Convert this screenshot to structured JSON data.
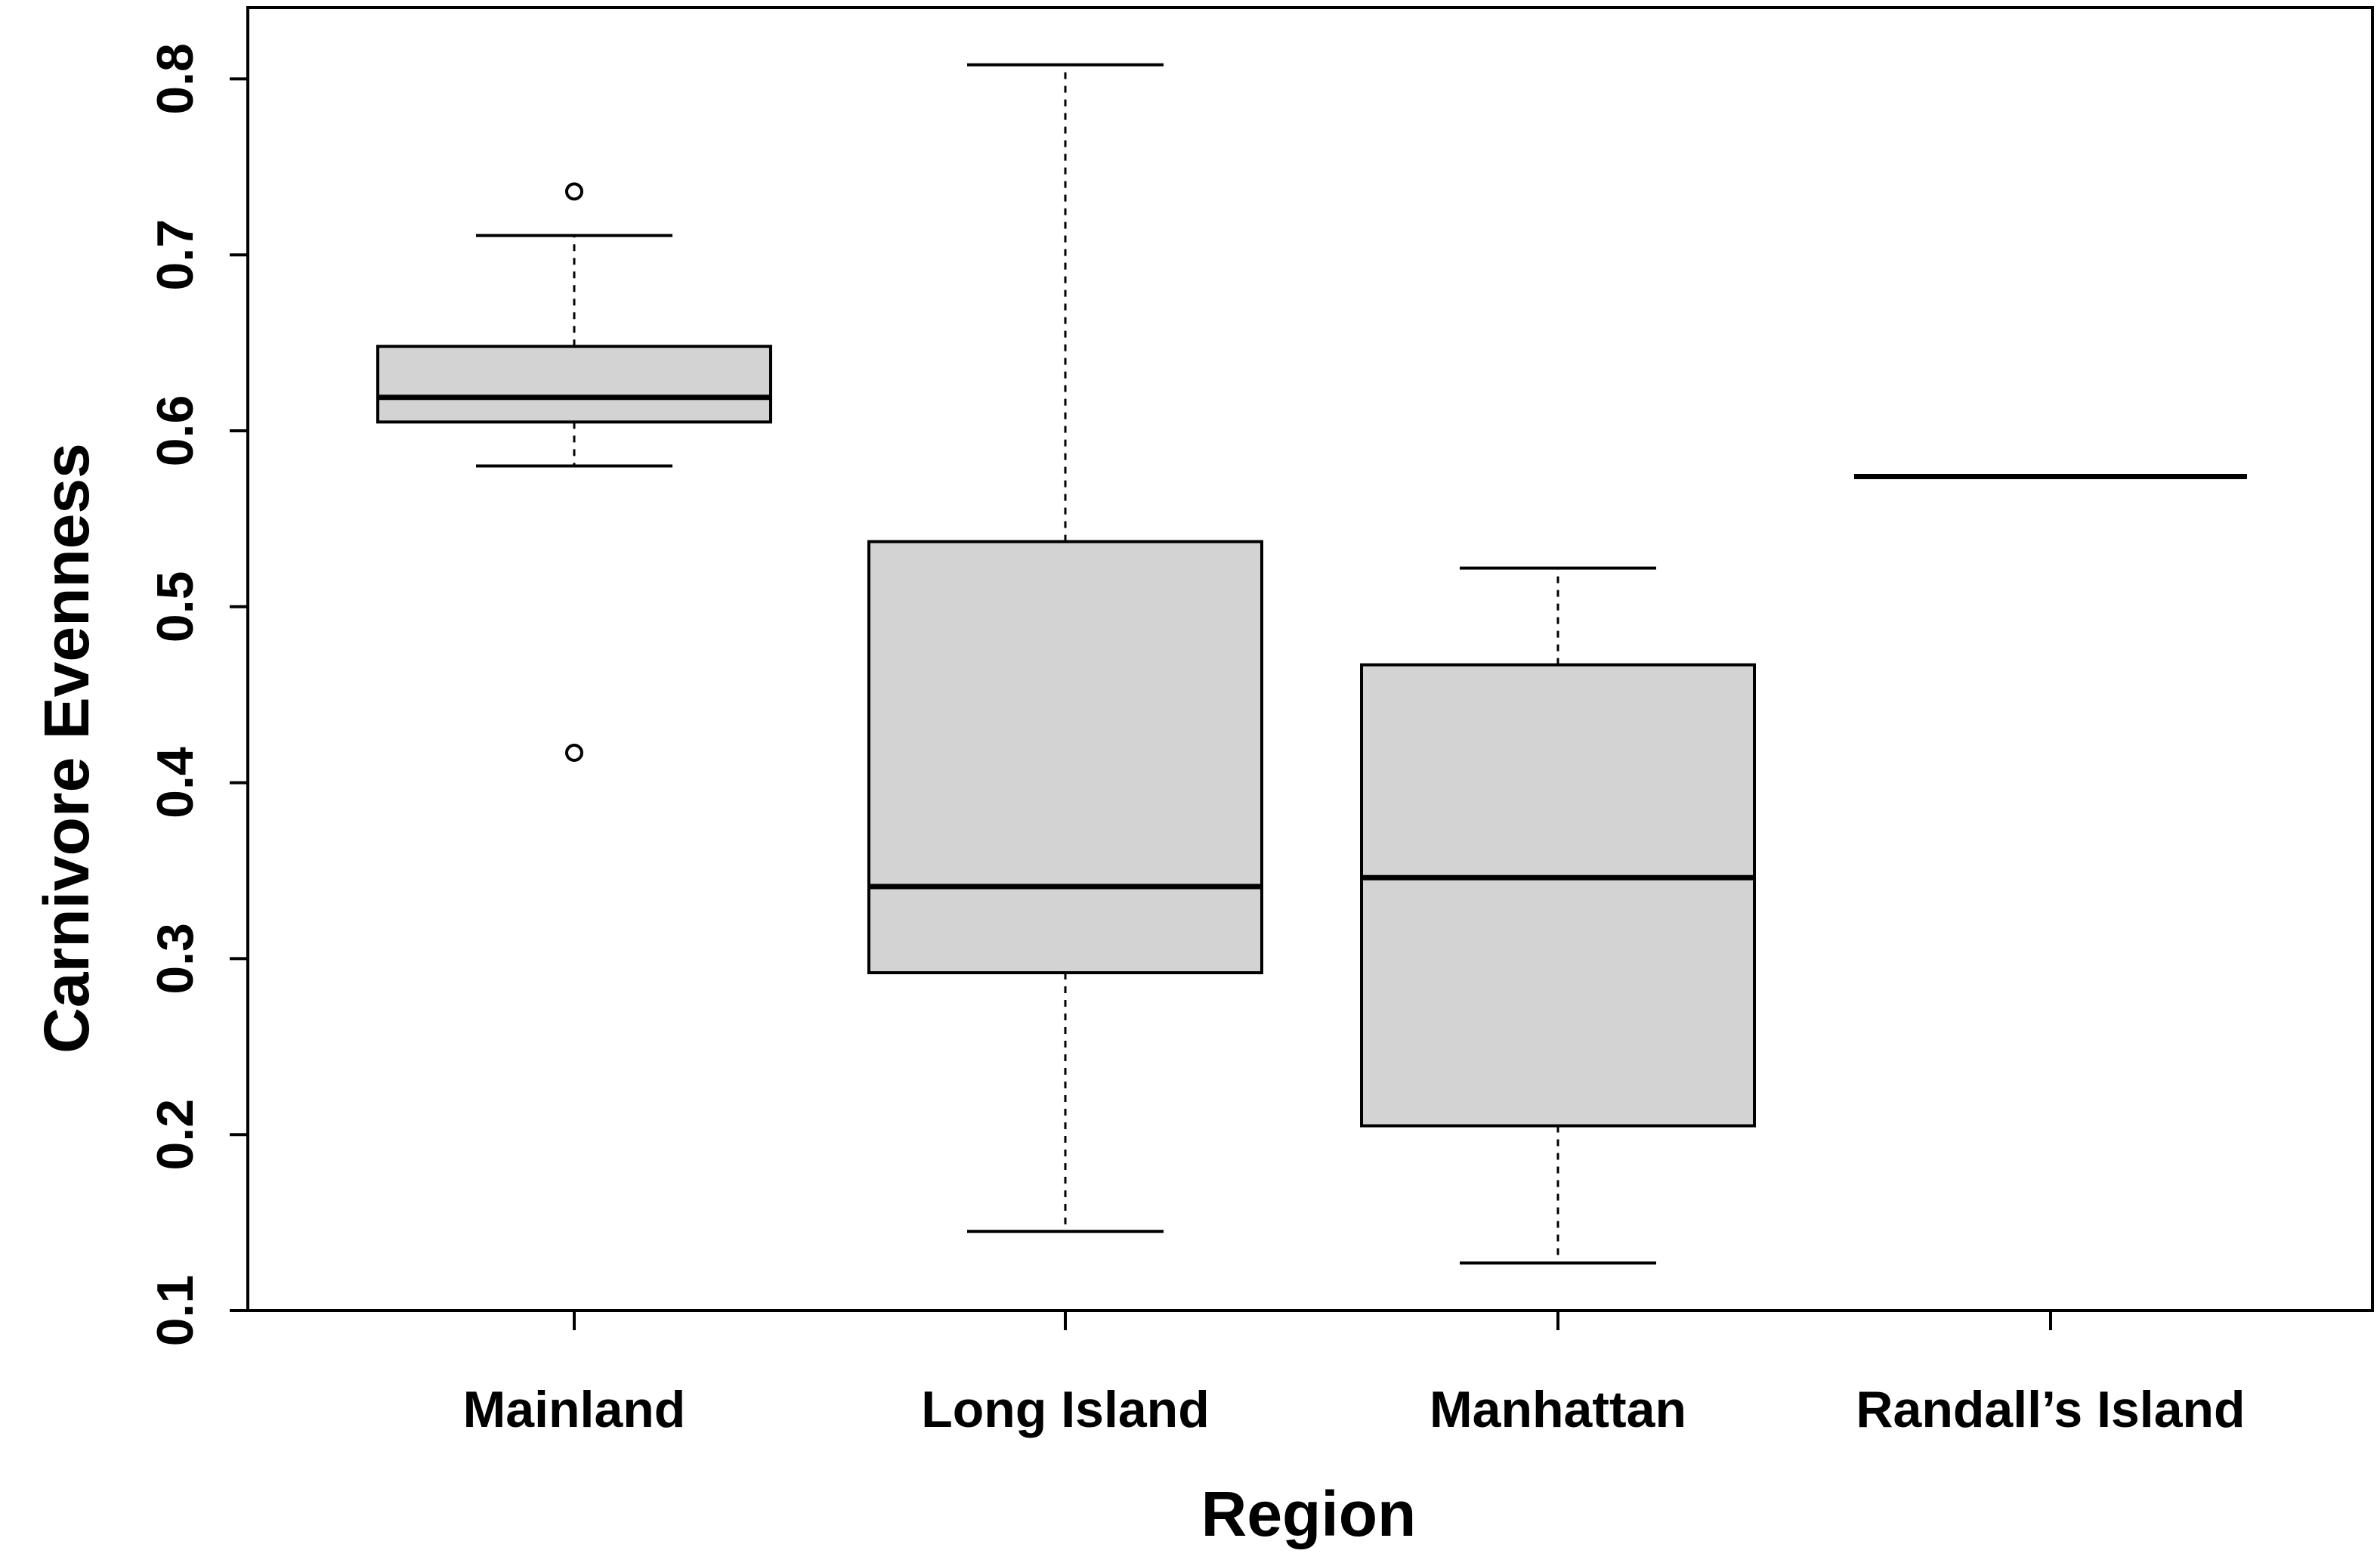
{
  "chart_data": {
    "type": "box",
    "title": "",
    "xlabel": "Region",
    "ylabel": "Carnivore Evenness",
    "ylim": [
      0.1,
      0.82
    ],
    "yticks": [
      "0.1",
      "0.2",
      "0.3",
      "0.4",
      "0.5",
      "0.6",
      "0.7",
      "0.8"
    ],
    "grid": false,
    "box_fill": "#d3d3d3",
    "categories": [
      "Mainland",
      "Long Island",
      "Manhattan",
      "Randall’s Island"
    ],
    "boxes": [
      {
        "category": "Mainland",
        "whisker_low": 0.58,
        "q1": 0.605,
        "median": 0.619,
        "q3": 0.648,
        "whisker_high": 0.711,
        "outliers": [
          0.736,
          0.417
        ]
      },
      {
        "category": "Long Island",
        "whisker_low": 0.145,
        "q1": 0.292,
        "median": 0.341,
        "q3": 0.537,
        "whisker_high": 0.808,
        "outliers": []
      },
      {
        "category": "Manhattan",
        "whisker_low": 0.127,
        "q1": 0.205,
        "median": 0.346,
        "q3": 0.467,
        "whisker_high": 0.522,
        "outliers": []
      },
      {
        "category": "Randall’s Island",
        "whisker_low": 0.574,
        "q1": 0.574,
        "median": 0.574,
        "q3": 0.574,
        "whisker_high": 0.574,
        "outliers": []
      }
    ]
  }
}
